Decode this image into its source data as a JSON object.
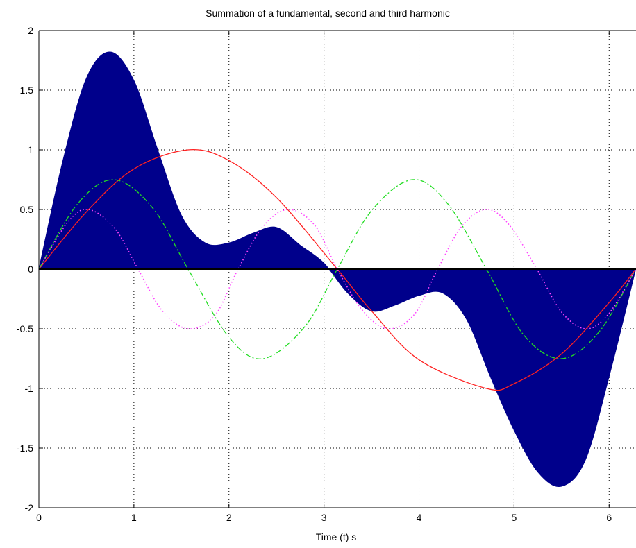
{
  "chart_data": {
    "type": "area",
    "title": "Summation of a fundamental, second and third harmonic",
    "xlabel": "Time (t) s",
    "ylabel": "",
    "xlim": [
      0,
      6.283
    ],
    "ylim": [
      -2,
      2
    ],
    "grid": true,
    "x_ticks": [
      "0",
      "1",
      "2",
      "3",
      "4",
      "5",
      "6"
    ],
    "y_ticks": [
      "2",
      "1.5",
      "1",
      "0.5",
      "0",
      "-0.5",
      "-1",
      "-1.5",
      "-2"
    ],
    "x_tick_values": [
      0,
      1,
      2,
      3,
      4,
      5,
      6
    ],
    "y_tick_values": [
      2,
      1.5,
      1,
      0.5,
      0,
      -0.5,
      -1,
      -1.5,
      -2
    ],
    "series": [
      {
        "style": "filled area",
        "color": "#00008b",
        "x": [
          0,
          0.25,
          0.5,
          0.75,
          1.0,
          1.25,
          1.5,
          1.75,
          2.0,
          2.25,
          2.5,
          2.75,
          3.0,
          3.25,
          3.5,
          3.75,
          4.0,
          4.25,
          4.5,
          4.75,
          5.0,
          5.25,
          5.5,
          5.75,
          6.0,
          6.28
        ],
        "values": [
          0,
          0.9,
          1.6,
          1.82,
          1.58,
          1.0,
          0.45,
          0.22,
          0.22,
          0.3,
          0.35,
          0.2,
          0.05,
          -0.2,
          -0.35,
          -0.3,
          -0.22,
          -0.2,
          -0.42,
          -0.9,
          -1.35,
          -1.7,
          -1.82,
          -1.6,
          -0.9,
          0
        ]
      },
      {
        "style": "solid line",
        "color": "#ff2020",
        "x": [
          0,
          0.5,
          1.0,
          1.57,
          2.0,
          2.5,
          3.14,
          3.5,
          4.0,
          4.71,
          5.0,
          5.5,
          6.0,
          6.28
        ],
        "values": [
          0,
          0.48,
          0.84,
          1.0,
          0.91,
          0.6,
          0,
          -0.35,
          -0.76,
          -1.0,
          -0.96,
          -0.71,
          -0.28,
          0
        ]
      },
      {
        "style": "dash-dot line",
        "color": "#22dd22",
        "x": [
          0,
          0.4,
          0.79,
          1.2,
          1.57,
          2.0,
          2.36,
          2.8,
          3.14,
          3.5,
          3.93,
          4.3,
          4.71,
          5.1,
          5.5,
          5.9,
          6.28
        ],
        "values": [
          0,
          0.54,
          0.75,
          0.51,
          0,
          -0.57,
          -0.75,
          -0.48,
          0,
          0.49,
          0.75,
          0.55,
          0,
          -0.55,
          -0.75,
          -0.52,
          0
        ]
      },
      {
        "style": "dotted line",
        "color": "#ff44ff",
        "x": [
          0,
          0.3,
          0.52,
          0.8,
          1.05,
          1.3,
          1.57,
          1.85,
          2.09,
          2.35,
          2.62,
          2.9,
          3.14,
          3.4,
          3.67,
          3.95,
          4.19,
          4.45,
          4.71,
          4.95,
          5.24,
          5.5,
          5.76,
          6.0,
          6.28
        ],
        "values": [
          0,
          0.39,
          0.5,
          0.34,
          -0.01,
          -0.35,
          -0.5,
          -0.39,
          -0.01,
          0.35,
          0.5,
          0.37,
          0,
          -0.34,
          -0.5,
          -0.38,
          -0.01,
          0.36,
          0.5,
          0.37,
          0,
          -0.36,
          -0.5,
          -0.37,
          0
        ]
      }
    ]
  }
}
